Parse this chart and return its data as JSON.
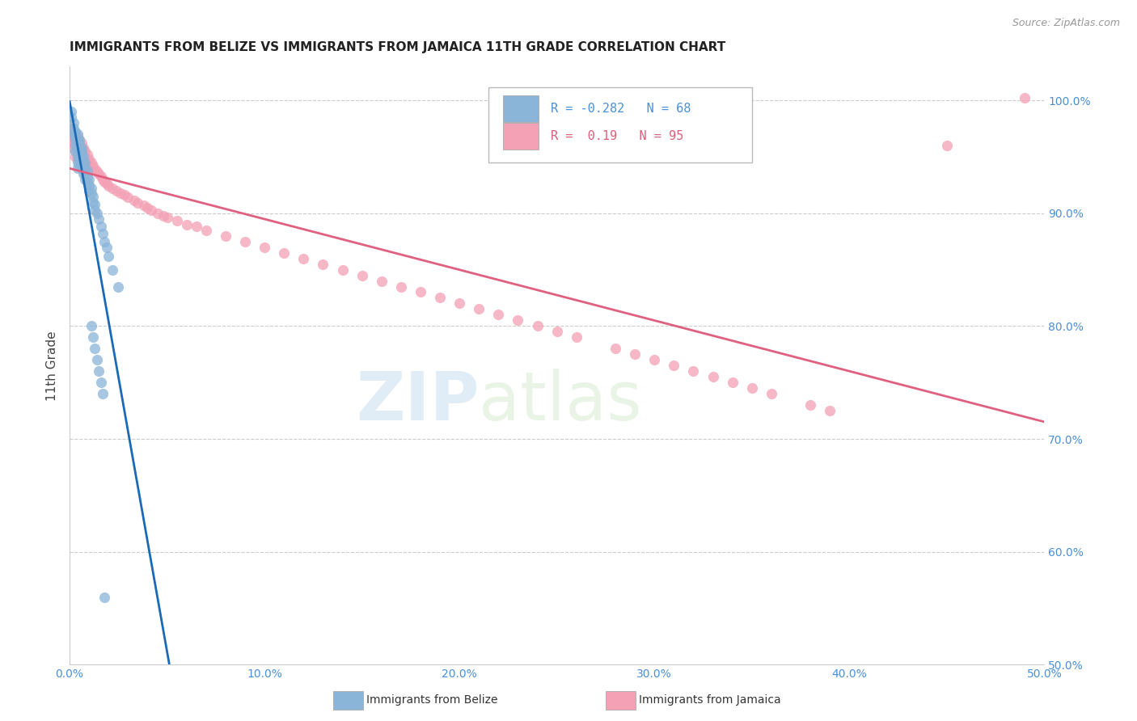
{
  "title": "IMMIGRANTS FROM BELIZE VS IMMIGRANTS FROM JAMAICA 11TH GRADE CORRELATION CHART",
  "source": "Source: ZipAtlas.com",
  "xlabel_ticks": [
    "0.0%",
    "10.0%",
    "20.0%",
    "30.0%",
    "40.0%",
    "50.0%"
  ],
  "xlabel_vals": [
    0.0,
    0.1,
    0.2,
    0.3,
    0.4,
    0.5
  ],
  "ylabel_label": "11th Grade",
  "right_yticks": [
    "100.0%",
    "90.0%",
    "80.0%",
    "70.0%",
    "60.0%",
    "50.0%"
  ],
  "right_yvals": [
    1.0,
    0.9,
    0.8,
    0.7,
    0.6,
    0.5
  ],
  "xmin": 0.0,
  "xmax": 0.5,
  "ymin": 0.5,
  "ymax": 1.03,
  "belize_color": "#8ab4d8",
  "jamaica_color": "#f4a0b5",
  "belize_line_color": "#1a6ab5",
  "jamaica_line_color": "#e06080",
  "belize_R": -0.282,
  "belize_N": 68,
  "jamaica_R": 0.19,
  "jamaica_N": 95,
  "legend_label_belize": "Immigrants from Belize",
  "legend_label_jamaica": "Immigrants from Jamaica",
  "watermark_zip": "ZIP",
  "watermark_atlas": "atlas",
  "belize_scatter_x": [
    0.001,
    0.001,
    0.002,
    0.002,
    0.002,
    0.003,
    0.003,
    0.003,
    0.003,
    0.003,
    0.004,
    0.004,
    0.004,
    0.004,
    0.004,
    0.004,
    0.004,
    0.005,
    0.005,
    0.005,
    0.005,
    0.005,
    0.005,
    0.005,
    0.005,
    0.006,
    0.006,
    0.006,
    0.006,
    0.006,
    0.006,
    0.007,
    0.007,
    0.007,
    0.007,
    0.008,
    0.008,
    0.008,
    0.008,
    0.009,
    0.009,
    0.009,
    0.01,
    0.01,
    0.01,
    0.011,
    0.011,
    0.012,
    0.012,
    0.013,
    0.013,
    0.014,
    0.015,
    0.016,
    0.017,
    0.018,
    0.019,
    0.02,
    0.022,
    0.025,
    0.011,
    0.012,
    0.013,
    0.014,
    0.015,
    0.016,
    0.017,
    0.018
  ],
  "belize_scatter_y": [
    0.99,
    0.985,
    0.975,
    0.98,
    0.97,
    0.972,
    0.968,
    0.965,
    0.96,
    0.955,
    0.97,
    0.965,
    0.96,
    0.955,
    0.95,
    0.945,
    0.94,
    0.965,
    0.962,
    0.958,
    0.955,
    0.95,
    0.948,
    0.945,
    0.942,
    0.958,
    0.955,
    0.952,
    0.948,
    0.945,
    0.942,
    0.95,
    0.945,
    0.94,
    0.935,
    0.945,
    0.94,
    0.935,
    0.93,
    0.938,
    0.933,
    0.928,
    0.93,
    0.925,
    0.92,
    0.922,
    0.918,
    0.915,
    0.91,
    0.908,
    0.903,
    0.9,
    0.895,
    0.888,
    0.882,
    0.875,
    0.87,
    0.862,
    0.85,
    0.835,
    0.8,
    0.79,
    0.78,
    0.77,
    0.76,
    0.75,
    0.74,
    0.56
  ],
  "jamaica_scatter_x": [
    0.001,
    0.001,
    0.001,
    0.002,
    0.002,
    0.002,
    0.002,
    0.003,
    0.003,
    0.003,
    0.003,
    0.003,
    0.004,
    0.004,
    0.004,
    0.004,
    0.004,
    0.005,
    0.005,
    0.005,
    0.005,
    0.006,
    0.006,
    0.006,
    0.006,
    0.007,
    0.007,
    0.007,
    0.008,
    0.008,
    0.008,
    0.009,
    0.009,
    0.01,
    0.01,
    0.01,
    0.011,
    0.012,
    0.013,
    0.014,
    0.015,
    0.016,
    0.017,
    0.018,
    0.019,
    0.02,
    0.022,
    0.024,
    0.026,
    0.028,
    0.03,
    0.033,
    0.035,
    0.038,
    0.04,
    0.042,
    0.045,
    0.048,
    0.05,
    0.055,
    0.06,
    0.065,
    0.07,
    0.08,
    0.09,
    0.1,
    0.11,
    0.12,
    0.13,
    0.14,
    0.15,
    0.16,
    0.17,
    0.18,
    0.19,
    0.2,
    0.21,
    0.22,
    0.23,
    0.24,
    0.25,
    0.26,
    0.28,
    0.29,
    0.3,
    0.31,
    0.32,
    0.33,
    0.34,
    0.35,
    0.36,
    0.38,
    0.39,
    0.45,
    0.49
  ],
  "jamaica_scatter_y": [
    0.975,
    0.97,
    0.965,
    0.972,
    0.968,
    0.963,
    0.958,
    0.97,
    0.965,
    0.96,
    0.955,
    0.95,
    0.968,
    0.963,
    0.958,
    0.953,
    0.948,
    0.965,
    0.96,
    0.955,
    0.95,
    0.962,
    0.958,
    0.953,
    0.948,
    0.958,
    0.953,
    0.948,
    0.955,
    0.95,
    0.945,
    0.952,
    0.947,
    0.948,
    0.943,
    0.938,
    0.945,
    0.942,
    0.939,
    0.937,
    0.935,
    0.933,
    0.93,
    0.928,
    0.926,
    0.924,
    0.922,
    0.92,
    0.918,
    0.916,
    0.914,
    0.911,
    0.909,
    0.907,
    0.905,
    0.903,
    0.9,
    0.898,
    0.896,
    0.893,
    0.89,
    0.888,
    0.885,
    0.88,
    0.875,
    0.87,
    0.865,
    0.86,
    0.855,
    0.85,
    0.845,
    0.84,
    0.835,
    0.83,
    0.825,
    0.82,
    0.815,
    0.81,
    0.805,
    0.8,
    0.795,
    0.79,
    0.78,
    0.775,
    0.77,
    0.765,
    0.76,
    0.755,
    0.75,
    0.745,
    0.74,
    0.73,
    0.725,
    0.96,
    1.002
  ]
}
